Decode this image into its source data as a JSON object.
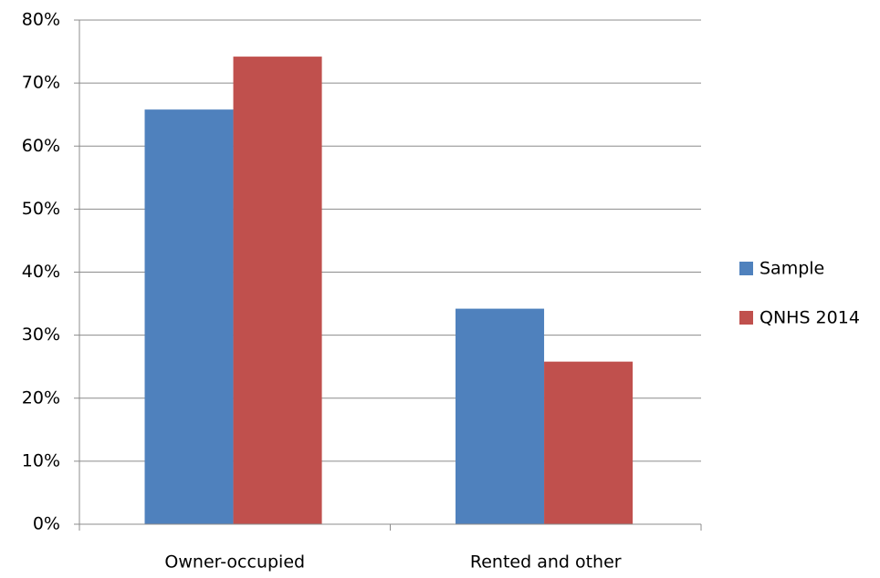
{
  "chart_data": {
    "type": "bar",
    "categories": [
      "Owner-occupied",
      "Rented and other"
    ],
    "series": [
      {
        "name": "Sample",
        "color": "#4f81bd",
        "values": [
          65.8,
          34.2
        ]
      },
      {
        "name": "QNHS 2014",
        "color": "#c0504d",
        "values": [
          74.2,
          25.8
        ]
      }
    ],
    "ylim": [
      0,
      80
    ],
    "yticks": [
      {
        "value": 0,
        "label": "0%"
      },
      {
        "value": 10,
        "label": "10%"
      },
      {
        "value": 20,
        "label": "20%"
      },
      {
        "value": 30,
        "label": "30%"
      },
      {
        "value": 40,
        "label": "40%"
      },
      {
        "value": 50,
        "label": "50%"
      },
      {
        "value": 60,
        "label": "60%"
      },
      {
        "value": 70,
        "label": "70%"
      },
      {
        "value": 80,
        "label": "80%"
      }
    ],
    "grid": true,
    "legend": "right"
  }
}
